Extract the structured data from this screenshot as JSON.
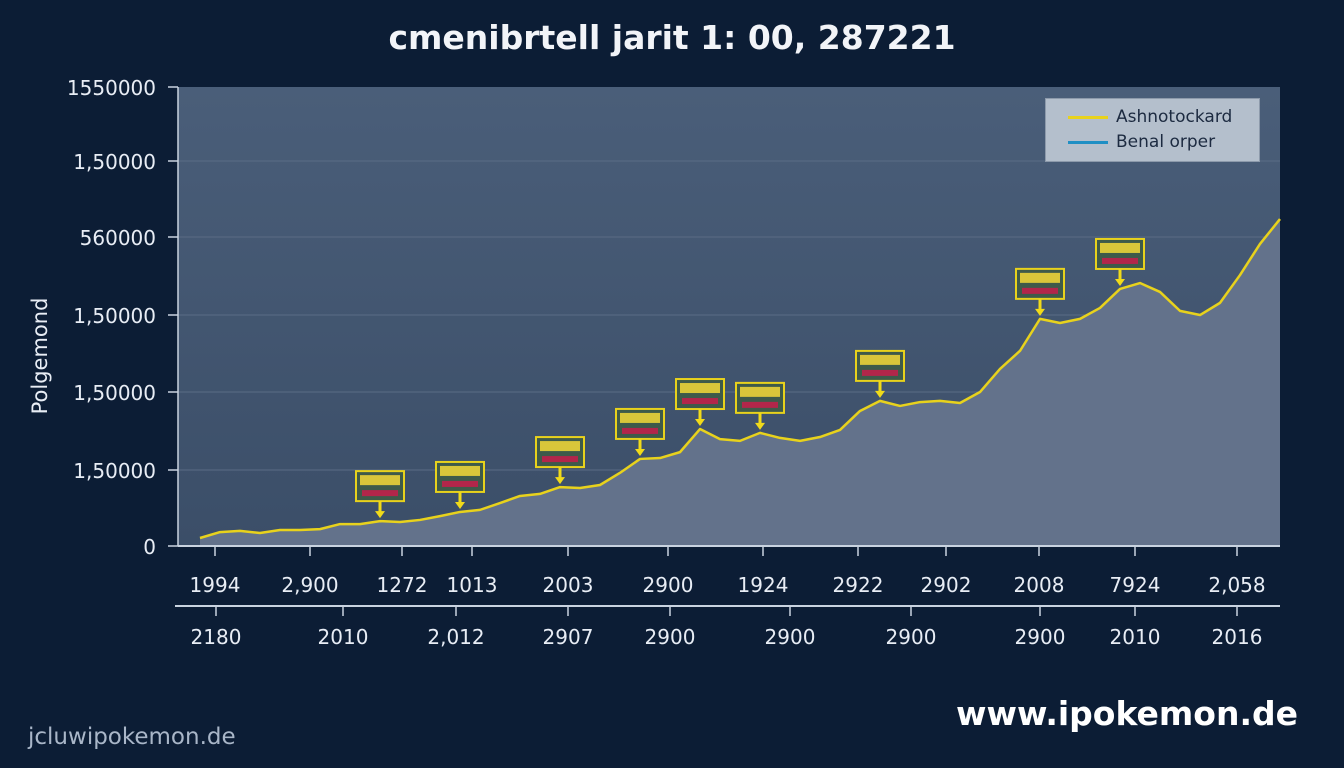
{
  "chart_data": {
    "type": "area",
    "title": "cmenibrtell jarit 1: 00, 287221",
    "ylabel": "Polgemond",
    "xlabel": "",
    "ylim": [
      0,
      1550000
    ],
    "grid": true,
    "legend_position": "top-right",
    "y_tick_labels": [
      "0",
      "1,50000",
      "1,50000",
      "1,50000",
      "1,50000",
      "560000",
      "1,50000",
      "1550000"
    ],
    "x_tick_labels_row1": [
      "1994",
      "2,900",
      "1272",
      "1013",
      "2003",
      "2900",
      "1924",
      "2922",
      "2902",
      "2008",
      "7924",
      "2,058"
    ],
    "x_tick_labels_row2": [
      "2180",
      "2010",
      "2,012",
      "2907",
      "2900",
      "2900",
      "2900",
      "2900",
      "2010",
      "2016"
    ],
    "series": [
      {
        "name": "Ashnotockard",
        "color": "#e8d21c",
        "values": [
          27000,
          47000,
          51000,
          44000,
          54000,
          54000,
          57000,
          74000,
          74000,
          84000,
          81000,
          88000,
          101000,
          115000,
          122000,
          145000,
          169000,
          176000,
          199000,
          196000,
          206000,
          247000,
          294000,
          297000,
          317000,
          395000,
          361000,
          355000,
          382000,
          365000,
          355000,
          368000,
          392000,
          456000,
          490000,
          473000,
          486000,
          490000,
          483000,
          520000,
          598000,
          659000,
          767000,
          753000,
          767000,
          804000,
          868000,
          888000,
          858000,
          794000,
          780000,
          821000,
          915000,
          1020000,
          1104000
        ]
      },
      {
        "name": "Benal orper",
        "color": "#1f8fc4",
        "values": []
      }
    ],
    "marker_point_indices": [
      9,
      13,
      18,
      22,
      25,
      28,
      34,
      42,
      46
    ],
    "marker_icon": "pokemon-card-icon",
    "marker_lettering": "Pokemon"
  },
  "colors": {
    "background": "#0c1d35",
    "plot_background": "#44576f",
    "area_fill": "#63728b"
  },
  "footer": {
    "left": "jcluwipokemon.de",
    "right": "www.ipokemon.de"
  }
}
